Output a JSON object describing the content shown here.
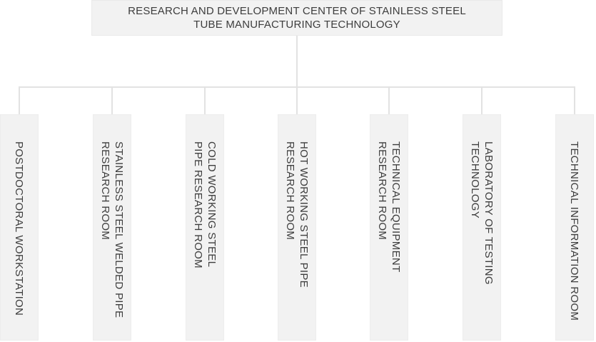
{
  "root": {
    "label": "RESEARCH AND DEVELOPMENT CENTER OF STAINLESS STEEL\nTUBE MANUFACTURING TECHNOLOGY"
  },
  "units": [
    {
      "label": "POSTDOCTORAL WORKSTATION"
    },
    {
      "label": "STAINLESS STEEL WELDED PIPE\nRESEARCH ROOM"
    },
    {
      "label": "COLD WORKING STEEL\nPIPE RESEARCH ROOM"
    },
    {
      "label": "HOT WORKING STEEL PIPE\nRESEARCH ROOM"
    },
    {
      "label": "TECHNICAL EQUIPMENT\nRESEARCH ROOM"
    },
    {
      "label": "LABORATORY OF TESTING\nTECHNOLOGY"
    },
    {
      "label": "TECHNICAL INFORMATION ROOM"
    }
  ],
  "colors": {
    "box_fill": "#f2f2f2",
    "box_border": "#ededed",
    "connector_line": "#e2e2e2",
    "text": "#3d3d3d",
    "background": "#ffffff"
  }
}
